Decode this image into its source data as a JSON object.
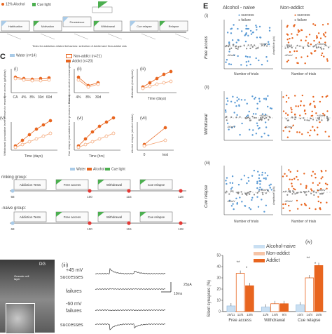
{
  "panel_labels": {
    "c": "C",
    "e": "E"
  },
  "top_legend": {
    "alcohol": "12% Alcohol",
    "cue": "Cue light"
  },
  "timeline_top": {
    "blocks": [
      "Habituation",
      "Motivation",
      "Persistence",
      "Withdrawal",
      "Cue relapse",
      "Relapse"
    ],
    "caption": "Tests for addiction-related behaviors: selection of Addict and Non-addict rats"
  },
  "panel_c": {
    "legend": [
      "Water (n=14)",
      "Non-addict (n=21)",
      "Addict (n=20)"
    ],
    "roman": [
      "(i)",
      "(ii)",
      "(iii)",
      "(v)",
      "(vi)",
      "(vii)"
    ],
    "ylabels": {
      "i": "Free access (g/kg/day)",
      "ii": "Free access alcohol consumption",
      "iii": "Motivation (breakpoint)",
      "v": "Withdrawal (cumulative lever presses to reward)",
      "vi": "Cue relapse (cumulative lever presses to reward)",
      "vii": "Alcohol relapse (alcohol intake)"
    },
    "xlabels": {
      "i": [
        "CA",
        "4%",
        "8%",
        "30d",
        "60d"
      ],
      "ii": [
        "4%",
        "8%",
        "30d"
      ],
      "iii": "Time (days)",
      "v": "Time (days)",
      "vi": "Time (hrs)",
      "vii": [
        "0",
        "test"
      ]
    }
  },
  "group_timelines": {
    "drinking": "rinking group:",
    "naive": "-naive group:",
    "legend": [
      "Water",
      "Alcohol",
      "Cue light"
    ],
    "blocks1": [
      "Addiction Tests",
      "Free access",
      "Withdrawal",
      "Cue relapse"
    ],
    "blocks2": [
      "Addiction Tests",
      "Free access",
      "Withdrawal",
      "Cue relapse"
    ],
    "days1": [
      "68",
      "100",
      "115",
      "128"
    ],
    "days2": [
      "68",
      "100",
      "115",
      "128"
    ]
  },
  "panel_iii_traces": {
    "label": "(iii)",
    "rows": [
      "+45 mV",
      "successes",
      "failures",
      "-60 mV",
      "failures",
      "successes"
    ],
    "scale_current": "25pA",
    "scale_time": "10ms"
  },
  "micrograph": {
    "region": "DG",
    "layer": "Granule cell layer"
  },
  "panel_e": {
    "col_heads": [
      "Alcohol - naive",
      "Non-addict"
    ],
    "rows": [
      "(i)",
      "(ii)",
      "(iii)"
    ],
    "row_labels": [
      "Free access",
      "Withdrawal",
      "Cue relapse"
    ],
    "legend": [
      "success",
      "failure"
    ],
    "vlabels": [
      "+45mV",
      "-60mV"
    ],
    "ylabel": "Amplitude (pA)",
    "xlabel": "Number of trials"
  },
  "chart_data": [
    {
      "type": "bar",
      "title": "(iv)",
      "ylabel": "Silent synapses (%)",
      "categories": [
        "Free access",
        "Withdrawal",
        "Cue relapse"
      ],
      "series": [
        {
          "name": "Alcohol-naive",
          "values": [
            5,
            4,
            6
          ]
        },
        {
          "name": "Non-addict",
          "values": [
            34,
            7,
            30
          ]
        },
        {
          "name": "Addict",
          "values": [
            23,
            7,
            41
          ]
        }
      ],
      "n_labels": [
        "29/11",
        "12/4",
        "13/6",
        "11/6",
        "14/6",
        "9/4",
        "10/4",
        "14/4",
        "15/5"
      ],
      "ylim": [
        0,
        50
      ],
      "ticks": [
        "0",
        "10",
        "20",
        "30",
        "40",
        "50"
      ],
      "significance": [
        "**",
        "*",
        "**",
        "*"
      ]
    }
  ],
  "colors": {
    "water": "#a9cbe8",
    "nonaddict": "#f6b894",
    "addict": "#e8651f",
    "naive": "#5b9bd5",
    "green": "#4caf50"
  }
}
